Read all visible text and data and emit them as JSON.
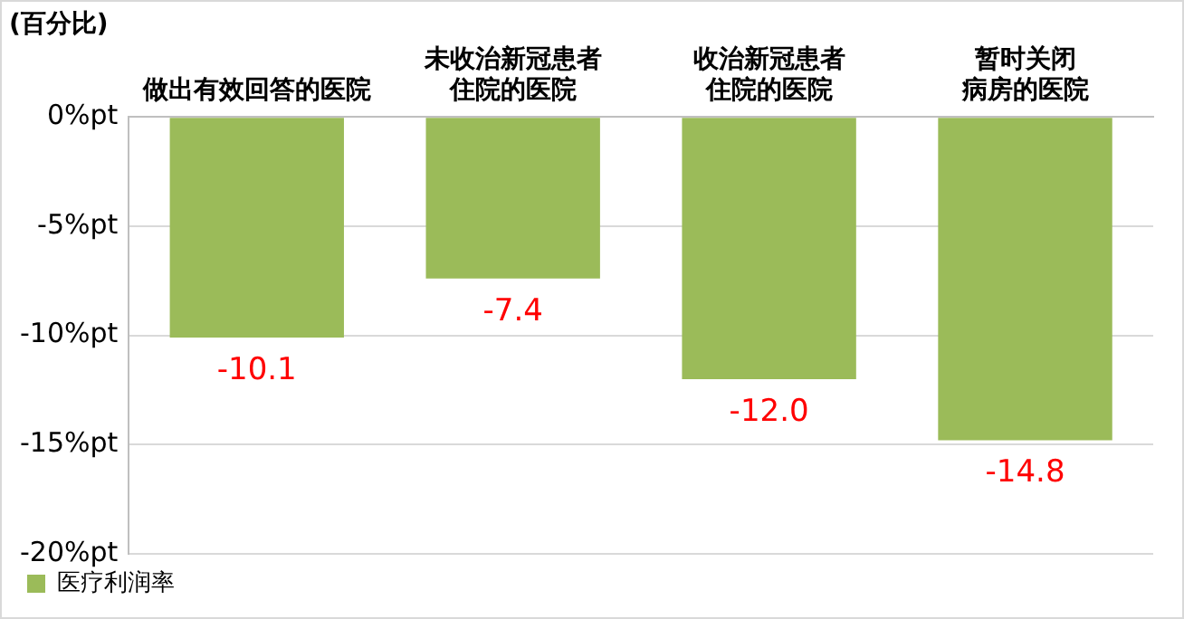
{
  "chart_data": {
    "type": "bar",
    "ylabel": "(百分比)",
    "categories": [
      "做出有效回答的医院",
      "未收治新冠患者住院的医院",
      "收治新冠患者住院的医院",
      "暂时关闭病房的医院"
    ],
    "series": [
      {
        "name": "医疗利润率",
        "color": "#9bbb59",
        "values": [
          -10.1,
          -7.4,
          -12.0,
          -14.8
        ],
        "value_labels": [
          "-10.1",
          "-7.4",
          "-12.0",
          "-14.8"
        ]
      }
    ],
    "ylim": [
      -20,
      0
    ],
    "yticks": [
      {
        "value": 0,
        "label": "0%pt"
      },
      {
        "value": -5,
        "label": "-5%pt"
      },
      {
        "value": -10,
        "label": "-10%pt"
      },
      {
        "value": -15,
        "label": "-15%pt"
      },
      {
        "value": -20,
        "label": "-20%pt"
      }
    ],
    "grid": "y",
    "legend": "bottom left"
  }
}
